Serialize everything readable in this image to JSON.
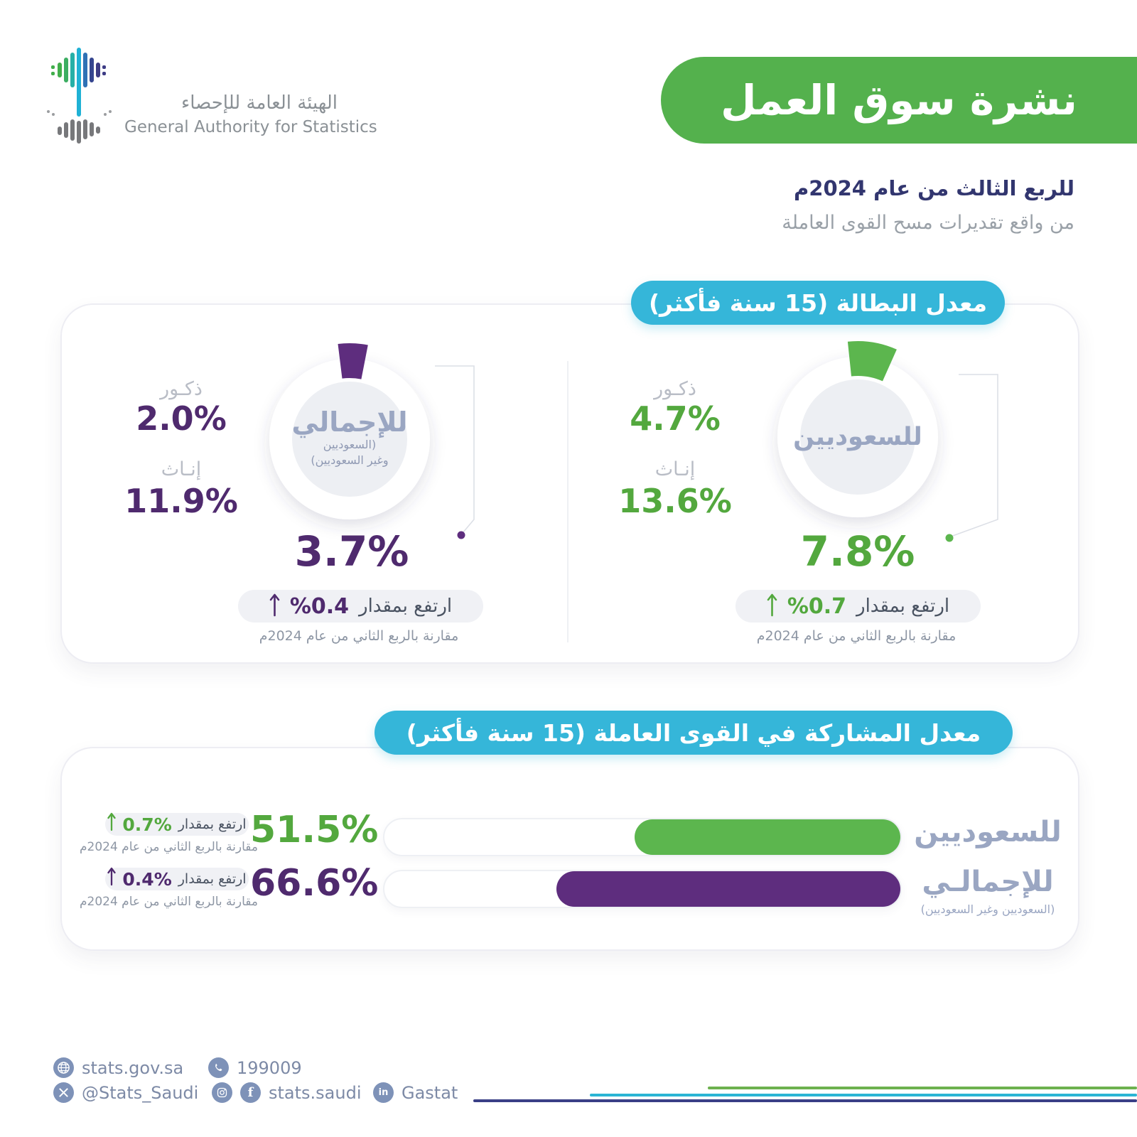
{
  "logo": {
    "org_ar": "الهيئة العامة للإحصاء",
    "org_en": "General Authority for Statistics"
  },
  "header": {
    "title": "نشرة سوق العمل",
    "subtitle_bold": "للربع الثالث من عام 2024م",
    "subtitle": "من واقع تقديرات مسح القوى العاملة",
    "banner_color": "#54b14d"
  },
  "unemployment": {
    "section_title": "معدل البطالة (15 سنة فأكثر)",
    "total": {
      "label": "للإجمالي",
      "sublabel_line1": "(السعوديين",
      "sublabel_line2": "وغير السعوديين)",
      "males_label": "ذكـور",
      "males_value": "2.0%",
      "females_label": "إنـاث",
      "females_value": "11.9%",
      "rate": "3.7%",
      "change_label": "ارتفع بمقدار",
      "change_value": "%0.4",
      "compare_note": "مقارنة بالربع الثاني من عام 2024م",
      "accent_color": "#4f2a6e",
      "wedge_color": "#5e2d7e"
    },
    "saudis": {
      "label": "للسعوديين",
      "males_label": "ذكـور",
      "males_value": "4.7%",
      "females_label": "إنـاث",
      "females_value": "13.6%",
      "rate": "7.8%",
      "change_label": "ارتفع بمقدار",
      "change_value": "%0.7",
      "compare_note": "مقارنة بالربع الثاني من عام 2024م",
      "accent_color": "#53a83e",
      "wedge_color": "#5cb64e"
    }
  },
  "participation": {
    "section_title": "معدل المشاركة في القوى العاملة (15 سنة فأكثر)",
    "rows": [
      {
        "label": "للسعوديين",
        "value": "51.5%",
        "value_num": 51.5,
        "change_value": "0.7%",
        "change_label": "ارتفع بمقدار",
        "compare_note": "مقارنة بالربع الثاني من عام 2024م",
        "bar_color": "#5cb64e"
      },
      {
        "label": "للإجمالـي",
        "sublabel": "(السعوديين وغير السعوديين)",
        "value": "66.6%",
        "value_num": 66.6,
        "change_value": "0.4%",
        "change_label": "ارتفع بمقدار",
        "compare_note": "مقارنة بالربع الثاني من عام 2024م",
        "bar_color": "#5e2d7e"
      }
    ]
  },
  "footer": {
    "website": "stats.gov.sa",
    "phone": "199009",
    "x_handle": "@Stats_Saudi",
    "social_handle": "stats.saudi",
    "linkedin": "Gastat"
  },
  "chart_data": [
    {
      "type": "pie",
      "title": "معدل البطالة (15 سنة فأكثر)",
      "unit": "%",
      "series": [
        {
          "name": "للإجمالي (السعوديين وغير السعوديين)",
          "rate": 3.7,
          "males": 2.0,
          "females": 11.9,
          "change_vs_q2_2024": 0.4,
          "direction": "up",
          "color": "#5e2d7e"
        },
        {
          "name": "للسعوديين",
          "rate": 7.8,
          "males": 4.7,
          "females": 13.6,
          "change_vs_q2_2024": 0.7,
          "direction": "up",
          "color": "#5cb64e"
        }
      ]
    },
    {
      "type": "bar",
      "title": "معدل المشاركة في القوى العاملة (15 سنة فأكثر)",
      "categories": [
        "للسعوديين",
        "للإجمالي (السعوديين وغير السعوديين)"
      ],
      "values": [
        51.5,
        66.6
      ],
      "changes_vs_q2_2024": [
        0.7,
        0.4
      ],
      "unit": "%",
      "xlim": [
        0,
        100
      ],
      "orientation": "horizontal",
      "colors": [
        "#5cb64e",
        "#5e2d7e"
      ]
    }
  ]
}
